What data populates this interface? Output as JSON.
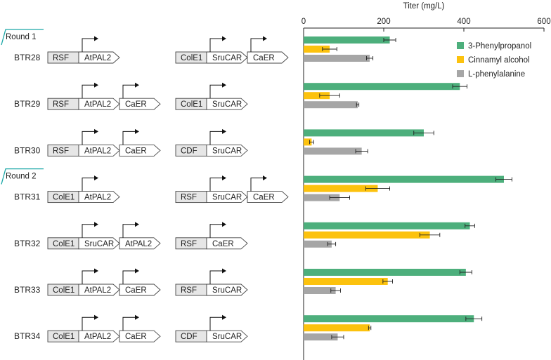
{
  "rounds": [
    {
      "label": "Round 1",
      "start": 0
    },
    {
      "label": "Round 2",
      "start": 3
    }
  ],
  "strains": [
    {
      "name": "BTR28",
      "plasmid1": {
        "ori": "RSF",
        "genes": [
          "AtPAL2"
        ],
        "promoters": [
          0
        ]
      },
      "plasmid2": {
        "ori": "ColE1",
        "genes": [
          "SruCAR",
          "CaER"
        ],
        "promoters": [
          0,
          1
        ]
      }
    },
    {
      "name": "BTR29",
      "plasmid1": {
        "ori": "RSF",
        "genes": [
          "AtPAL2",
          "CaER"
        ],
        "promoters": [
          0,
          1
        ]
      },
      "plasmid2": {
        "ori": "ColE1",
        "genes": [
          "SruCAR"
        ],
        "promoters": [
          0
        ]
      }
    },
    {
      "name": "BTR30",
      "plasmid1": {
        "ori": "RSF",
        "genes": [
          "AtPAL2",
          "CaER"
        ],
        "promoters": [
          0,
          1
        ]
      },
      "plasmid2": {
        "ori": "CDF",
        "genes": [
          "SruCAR"
        ],
        "promoters": [
          0
        ]
      }
    },
    {
      "name": "BTR31",
      "plasmid1": {
        "ori": "ColE1",
        "genes": [
          "AtPAL2"
        ],
        "promoters": [
          0
        ]
      },
      "plasmid2": {
        "ori": "RSF",
        "genes": [
          "SruCAR",
          "CaER"
        ],
        "promoters": [
          0,
          1
        ]
      }
    },
    {
      "name": "BTR32",
      "plasmid1": {
        "ori": "ColE1",
        "genes": [
          "SruCAR",
          "AtPAL2"
        ],
        "promoters": [
          0,
          1
        ]
      },
      "plasmid2": {
        "ori": "RSF",
        "genes": [
          "CaER"
        ],
        "promoters": [
          0
        ]
      }
    },
    {
      "name": "BTR33",
      "plasmid1": {
        "ori": "ColE1",
        "genes": [
          "AtPAL2",
          "CaER"
        ],
        "promoters": [
          0,
          1
        ]
      },
      "plasmid2": {
        "ori": "RSF",
        "genes": [
          "SruCAR"
        ],
        "promoters": [
          0
        ]
      }
    },
    {
      "name": "BTR34",
      "plasmid1": {
        "ori": "ColE1",
        "genes": [
          "AtPAL2",
          "CaER"
        ],
        "promoters": [
          0,
          1
        ]
      },
      "plasmid2": {
        "ori": "CDF",
        "genes": [
          "SruCAR"
        ],
        "promoters": [
          0
        ]
      }
    }
  ],
  "chart_data": {
    "type": "bar",
    "orientation": "horizontal",
    "title": "",
    "xlabel": "Titer (mg/L)",
    "ylabel": "",
    "xlim": [
      0,
      600
    ],
    "xticks": [
      0,
      200,
      400,
      600
    ],
    "grid": false,
    "legend": "top-right",
    "categories": [
      "BTR28",
      "BTR29",
      "BTR30",
      "BTR31",
      "BTR32",
      "BTR33",
      "BTR34"
    ],
    "series": [
      {
        "name": "3-Phenylpropanol",
        "color": "#4daf7c",
        "values": [
          215,
          390,
          300,
          500,
          415,
          405,
          425
        ],
        "errors": [
          15,
          18,
          25,
          20,
          12,
          15,
          20
        ]
      },
      {
        "name": "Cinnamyl alcohol",
        "color": "#fcc20e",
        "values": [
          65,
          65,
          20,
          185,
          315,
          210,
          165
        ],
        "errors": [
          18,
          25,
          5,
          30,
          25,
          12,
          3
        ]
      },
      {
        "name": "L-phenylalanine",
        "color": "#a6a6a6",
        "values": [
          165,
          135,
          145,
          90,
          70,
          80,
          85
        ],
        "errors": [
          8,
          3,
          15,
          25,
          10,
          12,
          15
        ]
      }
    ]
  }
}
